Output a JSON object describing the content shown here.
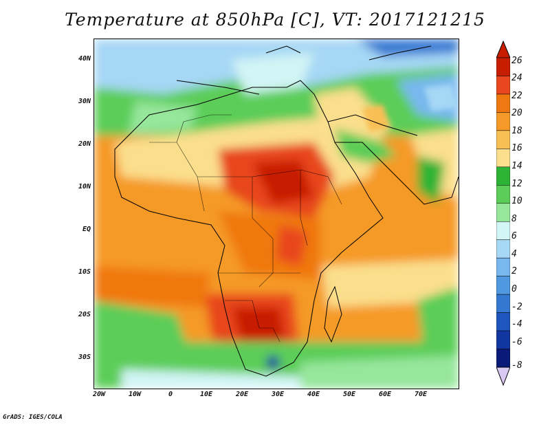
{
  "title": "Temperature at 850hPa [C], VT: 2017121215",
  "footer": "GrADS: IGES/COLA",
  "map": {
    "lat_labels": [
      "40N",
      "30N",
      "20N",
      "10N",
      "EQ",
      "10S",
      "20S",
      "30S"
    ],
    "lon_labels": [
      "20W",
      "10W",
      "0",
      "10E",
      "20E",
      "30E",
      "40E",
      "50E",
      "60E",
      "70E"
    ]
  },
  "colorbar": {
    "unit": "C",
    "labels": [
      "26",
      "24",
      "22",
      "20",
      "18",
      "16",
      "14",
      "12",
      "10",
      "8",
      "6",
      "4",
      "2",
      "0",
      "-2",
      "-4",
      "-6",
      "-8"
    ],
    "colors": [
      "#c81e00",
      "#e8461e",
      "#f07810",
      "#f59a28",
      "#f8bf55",
      "#fbdf8c",
      "#2db436",
      "#5ccd58",
      "#96e69b",
      "#d2f5f5",
      "#a6d7f5",
      "#78b8ee",
      "#5099e1",
      "#3478d2",
      "#1e56be",
      "#1236a0",
      "#0a1a78"
    ]
  }
}
